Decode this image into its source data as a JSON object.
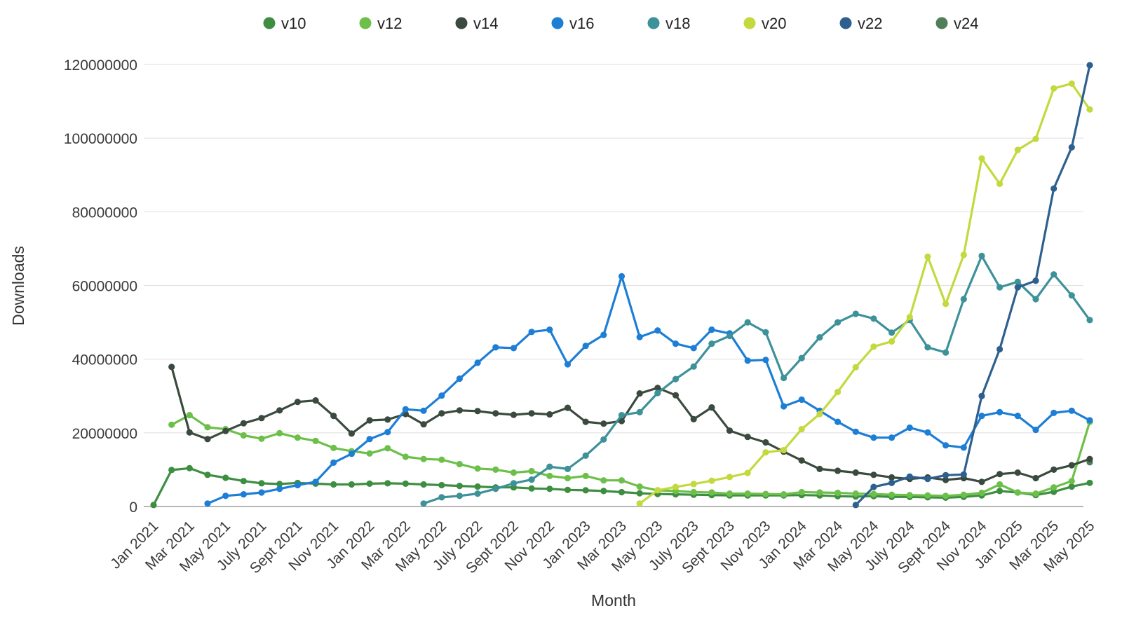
{
  "chart_data": {
    "type": "line",
    "title": "",
    "xlabel": "Month",
    "ylabel": "Downloads",
    "grid": true,
    "legend_position": "top-center",
    "ylim": [
      0,
      120000000
    ],
    "y_ticks": [
      0,
      20000000,
      40000000,
      60000000,
      80000000,
      100000000,
      120000000
    ],
    "x_tick_labels": [
      "Jan 2021",
      "Mar 2021",
      "May 2021",
      "July 2021",
      "Sept 2021",
      "Nov 2021",
      "Jan 2022",
      "Mar 2022",
      "May 2022",
      "July 2022",
      "Sept 2022",
      "Nov 2022",
      "Jan 2023",
      "Mar 2023",
      "May 2023",
      "July 2023",
      "Sept 2023",
      "Nov 2023",
      "Jan 2024",
      "Mar 2024",
      "May 2024",
      "July 2024",
      "Sept 2024",
      "Nov 2024",
      "Jan 2025",
      "Mar 2025",
      "May 2025"
    ],
    "x_categories": [
      "Jan 2021",
      "Feb 2021",
      "Mar 2021",
      "Apr 2021",
      "May 2021",
      "Jun 2021",
      "Jul 2021",
      "Aug 2021",
      "Sep 2021",
      "Oct 2021",
      "Nov 2021",
      "Dec 2021",
      "Jan 2022",
      "Feb 2022",
      "Mar 2022",
      "Apr 2022",
      "May 2022",
      "Jun 2022",
      "Jul 2022",
      "Aug 2022",
      "Sep 2022",
      "Oct 2022",
      "Nov 2022",
      "Dec 2022",
      "Jan 2023",
      "Feb 2023",
      "Mar 2023",
      "Apr 2023",
      "May 2023",
      "Jun 2023",
      "Jul 2023",
      "Aug 2023",
      "Sep 2023",
      "Oct 2023",
      "Nov 2023",
      "Dec 2023",
      "Jan 2024",
      "Feb 2024",
      "Mar 2024",
      "Apr 2024",
      "May 2024",
      "Jun 2024",
      "Jul 2024",
      "Aug 2024",
      "Sep 2024",
      "Oct 2024",
      "Nov 2024",
      "Dec 2024",
      "Jan 2025",
      "Feb 2025",
      "Mar 2025",
      "Apr 2025",
      "May 2025"
    ],
    "draw_order": [
      "v10",
      "v12",
      "v24",
      "v14",
      "v16",
      "v18",
      "v20",
      "v22"
    ],
    "series": [
      {
        "name": "v10",
        "color": "#3e8e41",
        "values": [
          400000,
          9900000,
          10400000,
          8600000,
          7800000,
          6900000,
          6300000,
          6100000,
          6400000,
          6200000,
          6000000,
          6000000,
          6200000,
          6300000,
          6200000,
          6000000,
          5800000,
          5600000,
          5400000,
          5200000,
          5200000,
          4900000,
          4800000,
          4500000,
          4400000,
          4200000,
          3900000,
          3600000,
          3400000,
          3300000,
          3200000,
          3100000,
          3000000,
          3000000,
          3000000,
          3000000,
          3100000,
          3000000,
          2800000,
          2700000,
          2800000,
          2600000,
          2600000,
          2500000,
          2400000,
          2600000,
          3000000,
          4200000,
          3800000,
          3100000,
          4000000,
          5400000,
          6400000
        ]
      },
      {
        "name": "v12",
        "color": "#6cc04a",
        "values": [
          null,
          22200000,
          24800000,
          21500000,
          21000000,
          19300000,
          18400000,
          19900000,
          18700000,
          17800000,
          15900000,
          15000000,
          14400000,
          15800000,
          13500000,
          12900000,
          12700000,
          11500000,
          10300000,
          10000000,
          9200000,
          9600000,
          8300000,
          7700000,
          8300000,
          7100000,
          7100000,
          5400000,
          4400000,
          4200000,
          3900000,
          3800000,
          3500000,
          3500000,
          3400000,
          3300000,
          3900000,
          3800000,
          3700000,
          3500000,
          3400000,
          3200000,
          3100000,
          3000000,
          2900000,
          3200000,
          3700000,
          6000000,
          3800000,
          3500000,
          5200000,
          6900000,
          23000000
        ]
      },
      {
        "name": "v14",
        "color": "#3a4a3e",
        "values": [
          null,
          37900000,
          20100000,
          18300000,
          20500000,
          22600000,
          24000000,
          26100000,
          28400000,
          28800000,
          24600000,
          19800000,
          23400000,
          23600000,
          25100000,
          22300000,
          25300000,
          26100000,
          25900000,
          25300000,
          24900000,
          25300000,
          25000000,
          26800000,
          23000000,
          22500000,
          23200000,
          30700000,
          32200000,
          30200000,
          23700000,
          26900000,
          20600000,
          18900000,
          17400000,
          14900000,
          12500000,
          10200000,
          9700000,
          9200000,
          8600000,
          7900000,
          7500000,
          7900000,
          7200000,
          7700000,
          6700000,
          8800000,
          9200000,
          7700000,
          10000000,
          11200000,
          12900000
        ]
      },
      {
        "name": "v16",
        "color": "#1d7ed6",
        "values": [
          null,
          null,
          null,
          800000,
          2900000,
          3300000,
          3800000,
          4800000,
          5800000,
          6700000,
          11900000,
          14300000,
          18300000,
          20200000,
          26400000,
          26000000,
          30100000,
          34700000,
          39000000,
          43200000,
          43000000,
          47400000,
          48000000,
          38600000,
          43600000,
          46600000,
          62500000,
          46000000,
          47800000,
          44200000,
          43000000,
          48000000,
          47000000,
          39600000,
          39800000,
          27200000,
          29000000,
          26000000,
          23000000,
          20300000,
          18700000,
          18700000,
          21400000,
          20100000,
          16600000,
          16000000,
          24600000,
          25600000,
          24600000,
          20800000,
          25400000,
          26000000,
          23400000
        ]
      },
      {
        "name": "v18",
        "color": "#3d9199",
        "values": [
          null,
          null,
          null,
          null,
          null,
          null,
          null,
          null,
          null,
          null,
          null,
          null,
          null,
          null,
          null,
          800000,
          2500000,
          2900000,
          3500000,
          4800000,
          6300000,
          7300000,
          10800000,
          10200000,
          13800000,
          18200000,
          24800000,
          25600000,
          30800000,
          34600000,
          38000000,
          44200000,
          46300000,
          50000000,
          47300000,
          34900000,
          40300000,
          45900000,
          50000000,
          52300000,
          51000000,
          47200000,
          50600000,
          43200000,
          41800000,
          56300000,
          68000000,
          59500000,
          61000000,
          56300000,
          63000000,
          57300000,
          50600000
        ]
      },
      {
        "name": "v20",
        "color": "#c3d93d",
        "values": [
          null,
          null,
          null,
          null,
          null,
          null,
          null,
          null,
          null,
          null,
          null,
          null,
          null,
          null,
          null,
          null,
          null,
          null,
          null,
          null,
          null,
          null,
          null,
          null,
          null,
          null,
          null,
          800000,
          4400000,
          5300000,
          6100000,
          7000000,
          8000000,
          9100000,
          14700000,
          15300000,
          21000000,
          25100000,
          31100000,
          37800000,
          43400000,
          44800000,
          51400000,
          67800000,
          55000000,
          68300000,
          94500000,
          87600000,
          96800000,
          99800000,
          113500000,
          114800000,
          107800000
        ]
      },
      {
        "name": "v22",
        "color": "#2e608f",
        "values": [
          null,
          null,
          null,
          null,
          null,
          null,
          null,
          null,
          null,
          null,
          null,
          null,
          null,
          null,
          null,
          null,
          null,
          null,
          null,
          null,
          null,
          null,
          null,
          null,
          null,
          null,
          null,
          null,
          null,
          null,
          null,
          null,
          null,
          null,
          null,
          null,
          null,
          null,
          null,
          400000,
          5300000,
          6400000,
          8100000,
          7500000,
          8500000,
          8700000,
          30000000,
          42700000,
          59500000,
          61300000,
          86300000,
          97500000,
          119800000
        ]
      },
      {
        "name": "v24",
        "color": "#507e58",
        "values": [
          null,
          null,
          null,
          null,
          null,
          null,
          null,
          null,
          null,
          null,
          null,
          null,
          null,
          null,
          null,
          null,
          null,
          null,
          null,
          null,
          null,
          null,
          null,
          null,
          null,
          null,
          null,
          null,
          null,
          null,
          null,
          null,
          null,
          null,
          null,
          null,
          null,
          null,
          null,
          null,
          null,
          null,
          null,
          null,
          null,
          null,
          null,
          null,
          null,
          null,
          null,
          null,
          12000000
        ]
      }
    ]
  }
}
